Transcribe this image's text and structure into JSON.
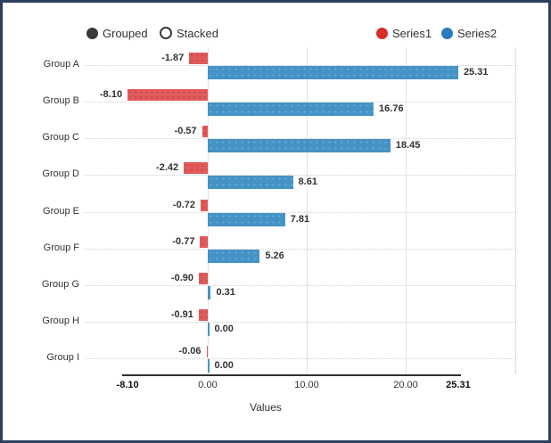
{
  "frame": {
    "border_color": "#2e3f5c",
    "background": "#ffffff"
  },
  "controls": {
    "grouped": {
      "label": "Grouped",
      "selected": true
    },
    "stacked": {
      "label": "Stacked",
      "selected": false
    }
  },
  "chart_data": {
    "type": "bar",
    "orientation": "horizontal",
    "title": "",
    "xlabel": "Values",
    "ylabel": "",
    "grid": true,
    "legend_position": "top-right",
    "categories": [
      "Group A",
      "Group B",
      "Group C",
      "Group D",
      "Group E",
      "Group F",
      "Group G",
      "Group H",
      "Group I"
    ],
    "series": [
      {
        "name": "Series1",
        "marker_color": "#d62d28",
        "bar_color": "#e05a5a",
        "values": [
          -1.87,
          -8.1,
          -0.57,
          -2.42,
          -0.72,
          -0.77,
          -0.9,
          -0.91,
          -0.06
        ],
        "labels": [
          "-1.87",
          "-8.10",
          "-0.57",
          "-2.42",
          "-0.72",
          "-0.77",
          "-0.90",
          "-0.91",
          "-0.06"
        ]
      },
      {
        "name": "Series2",
        "marker_color": "#2a7abc",
        "bar_color": "#4593c6",
        "values": [
          25.31,
          16.76,
          18.45,
          8.61,
          7.81,
          5.26,
          0.31,
          0.0,
          0.0
        ],
        "labels": [
          "25.31",
          "16.76",
          "18.45",
          "8.61",
          "7.81",
          "5.26",
          "0.31",
          "0.00",
          "0.00"
        ]
      }
    ],
    "x_ticks": [
      {
        "value": -8.1,
        "label": "-8.10",
        "bold": true
      },
      {
        "value": 0,
        "label": "0.00",
        "bold": false
      },
      {
        "value": 10,
        "label": "10.00",
        "bold": false
      },
      {
        "value": 20,
        "label": "20.00",
        "bold": false
      },
      {
        "value": 25.31,
        "label": "25.31",
        "bold": true
      }
    ],
    "gridline_values": [
      0,
      10,
      20
    ],
    "xlim": [
      -12.4,
      31.1
    ]
  }
}
